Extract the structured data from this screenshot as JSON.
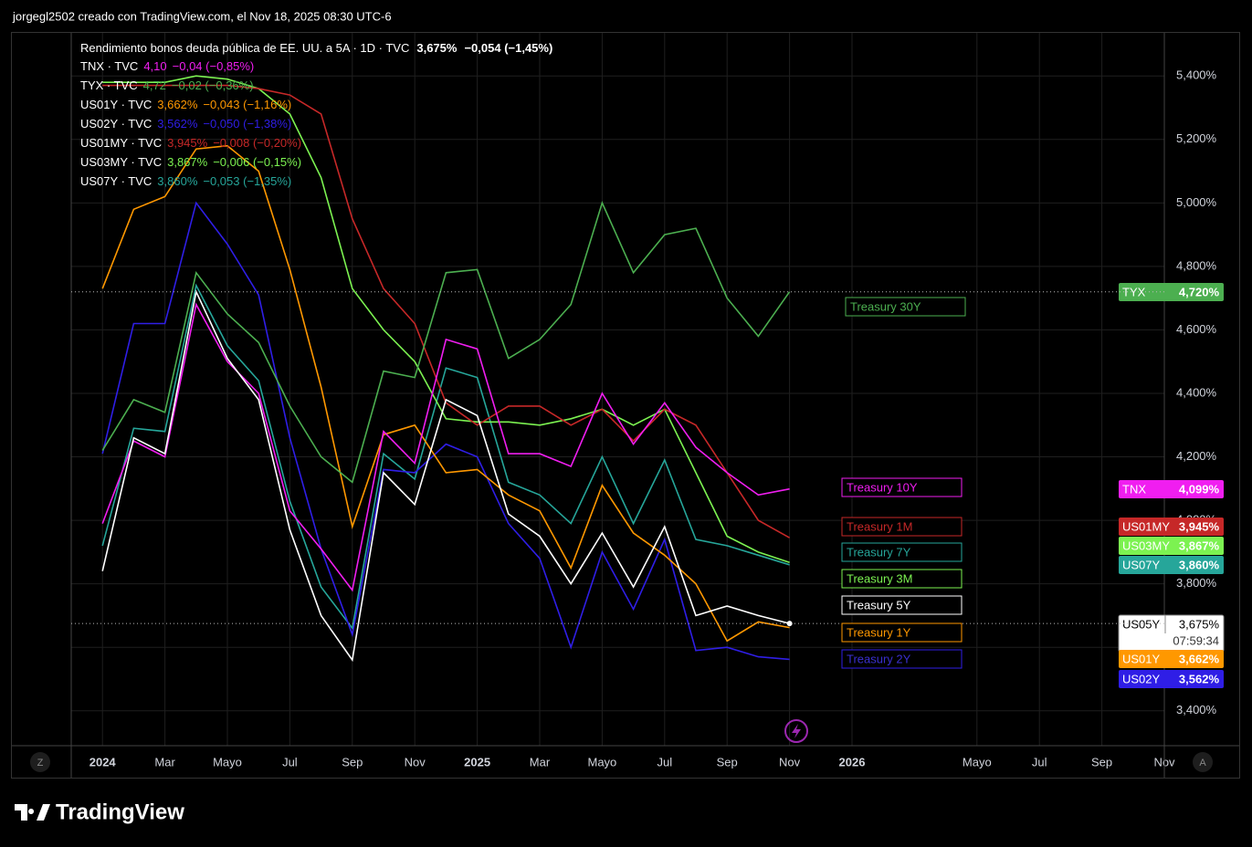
{
  "header": {
    "caption": "jorgegl2502 creado con TradingView.com, el Nov 18, 2025 08:30 UTC-6"
  },
  "footer": {
    "logo": "TradingView",
    "left_button": "Z",
    "right_button": "A"
  },
  "chart_data": {
    "type": "line",
    "title": "Rendimiento bonos deuda pública de EE. UU. a 5A · 1D · TVC",
    "header_value": "3,675%",
    "header_change": "−0,054 (−1,45%)",
    "countdown": "07:59:34",
    "x": [
      "2024-01",
      "2024-02",
      "2024-03",
      "2024-04",
      "2024-05",
      "2024-06",
      "2024-07",
      "2024-08",
      "2024-09",
      "2024-10",
      "2024-11",
      "2024-12",
      "2025-01",
      "2025-02",
      "2025-03",
      "2025-04",
      "2025-05",
      "2025-06",
      "2025-07",
      "2025-08",
      "2025-09",
      "2025-10",
      "2025-11"
    ],
    "xlim": [
      "2023-12",
      "2026-11"
    ],
    "xticks": [
      {
        "value": "2024-01",
        "label": "2024"
      },
      {
        "value": "2024-03",
        "label": "Mar"
      },
      {
        "value": "2024-05",
        "label": "Mayo"
      },
      {
        "value": "2024-07",
        "label": "Jul"
      },
      {
        "value": "2024-09",
        "label": "Sep"
      },
      {
        "value": "2024-11",
        "label": "Nov"
      },
      {
        "value": "2025-01",
        "label": "2025"
      },
      {
        "value": "2025-03",
        "label": "Mar"
      },
      {
        "value": "2025-05",
        "label": "Mayo"
      },
      {
        "value": "2025-07",
        "label": "Jul"
      },
      {
        "value": "2025-09",
        "label": "Sep"
      },
      {
        "value": "2025-11",
        "label": "Nov"
      },
      {
        "value": "2026-01",
        "label": "2026"
      },
      {
        "value": "2026-05",
        "label": "Mayo"
      },
      {
        "value": "2026-07",
        "label": "Jul"
      },
      {
        "value": "2026-09",
        "label": "Sep"
      },
      {
        "value": "2026-11",
        "label": "Nov"
      }
    ],
    "ylim": [
      3.29,
      5.53
    ],
    "yticks": [
      {
        "value": 3.4,
        "label": "3,400%"
      },
      {
        "value": 3.6,
        "label": "3,600%"
      },
      {
        "value": 3.8,
        "label": "3,800%"
      },
      {
        "value": 4.0,
        "label": "4,000%"
      },
      {
        "value": 4.2,
        "label": "4,200%"
      },
      {
        "value": 4.4,
        "label": "4,400%"
      },
      {
        "value": 4.6,
        "label": "4,600%"
      },
      {
        "value": 4.8,
        "label": "4,800%"
      },
      {
        "value": 5.0,
        "label": "5,000%"
      },
      {
        "value": 5.2,
        "label": "5,200%"
      },
      {
        "value": 5.4,
        "label": "5,400%"
      }
    ],
    "grid": true,
    "series": [
      {
        "name": "Treasury 5Y",
        "symbol": "US05Y",
        "color": "#ffffff",
        "last_label": "3,675%",
        "values": [
          3.84,
          4.26,
          4.21,
          4.72,
          4.51,
          4.38,
          3.97,
          3.7,
          3.56,
          4.15,
          4.05,
          4.38,
          4.33,
          4.02,
          3.95,
          3.8,
          3.96,
          3.79,
          3.98,
          3.7,
          3.73,
          3.7,
          3.675
        ]
      },
      {
        "name": "Treasury 10Y",
        "symbol": "TNX",
        "color": "#f01ef0",
        "last_label": "4,099%",
        "legend_label": "TNX · TVC",
        "legend_value": "4,10",
        "legend_change": "−0,04 (−0,85%)",
        "values": [
          3.99,
          4.25,
          4.2,
          4.68,
          4.5,
          4.4,
          4.03,
          3.91,
          3.78,
          4.28,
          4.18,
          4.57,
          4.54,
          4.21,
          4.21,
          4.17,
          4.4,
          4.24,
          4.37,
          4.23,
          4.15,
          4.08,
          4.099
        ]
      },
      {
        "name": "Treasury 30Y",
        "symbol": "TYX",
        "color": "#4caf50",
        "last_label": "4,720%",
        "legend_label": "TYX · TVC",
        "legend_value": "4,72",
        "legend_change": "−0,02 (−0,36%)",
        "values": [
          4.22,
          4.38,
          4.34,
          4.78,
          4.65,
          4.56,
          4.36,
          4.2,
          4.12,
          4.47,
          4.45,
          4.78,
          4.79,
          4.51,
          4.57,
          4.68,
          5.0,
          4.78,
          4.9,
          4.92,
          4.7,
          4.58,
          4.72
        ]
      },
      {
        "name": "Treasury 1Y",
        "symbol": "US01Y",
        "color": "#ff9800",
        "last_label": "3,662%",
        "legend_label": "US01Y · TVC",
        "legend_value": "3,662%",
        "legend_change": "−0,043 (−1,16%)",
        "values": [
          4.73,
          4.98,
          5.02,
          5.17,
          5.18,
          5.1,
          4.79,
          4.42,
          3.98,
          4.27,
          4.3,
          4.15,
          4.16,
          4.08,
          4.03,
          3.85,
          4.11,
          3.96,
          3.89,
          3.8,
          3.62,
          3.68,
          3.662
        ]
      },
      {
        "name": "Treasury 2Y",
        "symbol": "US02Y",
        "color": "#2f1ee6",
        "last_label": "3,562%",
        "legend_label": "US02Y · TVC",
        "legend_value": "3,562%",
        "legend_change": "−0,050 (−1,38%)",
        "values": [
          4.21,
          4.62,
          4.62,
          5.0,
          4.87,
          4.71,
          4.26,
          3.91,
          3.64,
          4.16,
          4.15,
          4.24,
          4.2,
          3.99,
          3.88,
          3.6,
          3.9,
          3.72,
          3.94,
          3.59,
          3.6,
          3.57,
          3.562
        ]
      },
      {
        "name": "Treasury 1M",
        "symbol": "US01MY",
        "color": "#c62828",
        "last_label": "3,945%",
        "legend_label": "US01MY · TVC",
        "legend_value": "3,945%",
        "legend_change": "−0,008 (−0,20%)",
        "values": [
          5.37,
          5.37,
          5.37,
          5.37,
          5.37,
          5.36,
          5.34,
          5.28,
          4.95,
          4.73,
          4.62,
          4.37,
          4.3,
          4.36,
          4.36,
          4.3,
          4.35,
          4.25,
          4.35,
          4.3,
          4.15,
          4.0,
          3.945
        ]
      },
      {
        "name": "Treasury 3M",
        "symbol": "US03MY",
        "color": "#7cf251",
        "last_label": "3,867%",
        "legend_label": "US03MY · TVC",
        "legend_value": "3,867%",
        "legend_change": "−0,006 (−0,15%)",
        "values": [
          5.38,
          5.38,
          5.38,
          5.4,
          5.39,
          5.36,
          5.28,
          5.08,
          4.73,
          4.6,
          4.5,
          4.32,
          4.31,
          4.31,
          4.3,
          4.32,
          4.35,
          4.3,
          4.35,
          4.15,
          3.95,
          3.9,
          3.867
        ]
      },
      {
        "name": "Treasury 7Y",
        "symbol": "US07Y",
        "color": "#26a69a",
        "last_label": "3,860%",
        "legend_label": "US07Y · TVC",
        "legend_value": "3,860%",
        "legend_change": "−0,053 (−1,35%)",
        "values": [
          3.92,
          4.29,
          4.28,
          4.74,
          4.55,
          4.44,
          4.06,
          3.79,
          3.66,
          4.21,
          4.13,
          4.48,
          4.45,
          4.12,
          4.08,
          3.99,
          4.2,
          3.99,
          4.19,
          3.94,
          3.92,
          3.89,
          3.86
        ]
      }
    ]
  }
}
